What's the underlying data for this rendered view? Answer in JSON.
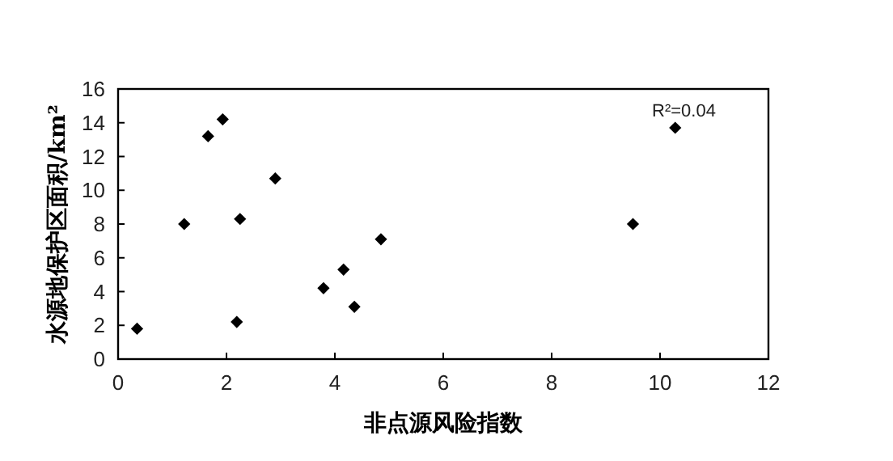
{
  "chart_data": {
    "type": "scatter",
    "xlabel": "非点源风险指数",
    "ylabel": "水源地保护区面积/km²",
    "x": [
      0.35,
      1.22,
      1.66,
      1.93,
      2.19,
      2.25,
      2.9,
      3.79,
      4.16,
      4.36,
      4.85,
      9.5,
      10.28
    ],
    "values": [
      1.8,
      8.0,
      13.2,
      14.2,
      2.2,
      8.3,
      10.7,
      4.2,
      5.3,
      3.1,
      7.1,
      8.0,
      13.7
    ],
    "color": "#000000",
    "marker": "diamond",
    "grid": false,
    "legend": false,
    "xlim": [
      0,
      12
    ],
    "xticks": [
      0,
      2,
      4,
      6,
      8,
      10,
      12
    ],
    "ylim": [
      0,
      16
    ],
    "yticks": [
      0,
      2,
      4,
      6,
      8,
      10,
      12,
      14,
      16
    ],
    "annotations": [
      "R²=0.04"
    ]
  }
}
